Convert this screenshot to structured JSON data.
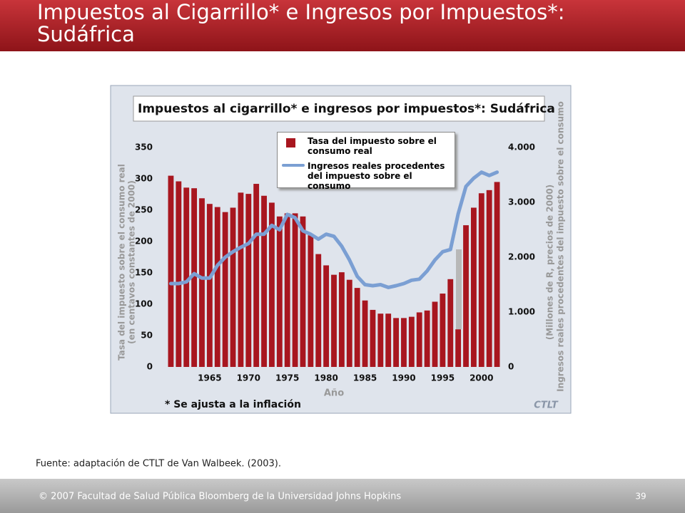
{
  "slide": {
    "title": "Impuestos al Cigarrillo* e Ingresos por Impuestos*: Sudáfrica",
    "source": "Fuente: adaptación de CTLT de Van Walbeek. (2003).",
    "footer": "© 2007 Facultad de Salud Pública Bloomberg de la Universidad Johns Hopkins",
    "page_number": "39"
  },
  "chart_data": {
    "type": "bar",
    "title": "Impuestos al cigarrillo* e ingresos por impuestos*: Sudáfrica",
    "xlabel": "Año",
    "ylabel": "Tasa del impuesto sobre el consumo real",
    "ylabel_unit": "(en centavos constantes de 2000)",
    "y2label": "Ingresos reales procedentes del impuesto sobre el consumo",
    "y2label_unit": "(Millones de R, precios de 2000)",
    "footnote": "* Se ajusta a la inflación",
    "logo": "CTLT",
    "x": [
      1960,
      1961,
      1962,
      1963,
      1964,
      1965,
      1966,
      1967,
      1968,
      1969,
      1970,
      1971,
      1972,
      1973,
      1974,
      1975,
      1976,
      1977,
      1978,
      1979,
      1980,
      1981,
      1982,
      1983,
      1984,
      1985,
      1986,
      1987,
      1988,
      1989,
      1990,
      1991,
      1992,
      1993,
      1994,
      1995,
      1996,
      1997,
      1998,
      1999,
      2000,
      2001,
      2002
    ],
    "xlim": [
      1959.5,
      2002.5
    ],
    "xticks": [
      1965,
      1970,
      1975,
      1980,
      1985,
      1990,
      1995,
      2000
    ],
    "ylim": [
      0,
      350
    ],
    "yticks": [
      0,
      50,
      100,
      150,
      200,
      250,
      300,
      350
    ],
    "y2lim": [
      0,
      4000
    ],
    "y2ticks": [
      0,
      {
        "value": 1000,
        "label": "1.000"
      },
      {
        "value": 2000,
        "label": "2.000"
      },
      {
        "value": 3000,
        "label": "3.000"
      },
      {
        "value": 4000,
        "label": "4.000"
      }
    ],
    "series": [
      {
        "name": "Tasa del impuesto sobre el consumo real",
        "type": "bar",
        "color": "#a8161f",
        "values": [
          305,
          296,
          286,
          285,
          269,
          260,
          255,
          247,
          254,
          278,
          276,
          292,
          273,
          262,
          240,
          245,
          245,
          240,
          210,
          180,
          162,
          147,
          151,
          139,
          126,
          106,
          91,
          85,
          85,
          78,
          78,
          80,
          87,
          90,
          104,
          117,
          140,
          60,
          226,
          254,
          277,
          282,
          295
        ]
      },
      {
        "name": "Ingresos reales procedentes del impuesto sobre el consumo",
        "type": "line",
        "color": "#7b9fd3",
        "axis": "y2",
        "values": [
          1520,
          1520,
          1550,
          1700,
          1620,
          1620,
          1850,
          2000,
          2100,
          2180,
          2250,
          2420,
          2420,
          2580,
          2500,
          2780,
          2720,
          2480,
          2420,
          2330,
          2420,
          2380,
          2200,
          1950,
          1650,
          1500,
          1480,
          1500,
          1450,
          1480,
          1520,
          1580,
          1600,
          1750,
          1950,
          2100,
          2140,
          2790,
          3290,
          3440,
          3550,
          3490,
          3550
        ]
      }
    ]
  }
}
